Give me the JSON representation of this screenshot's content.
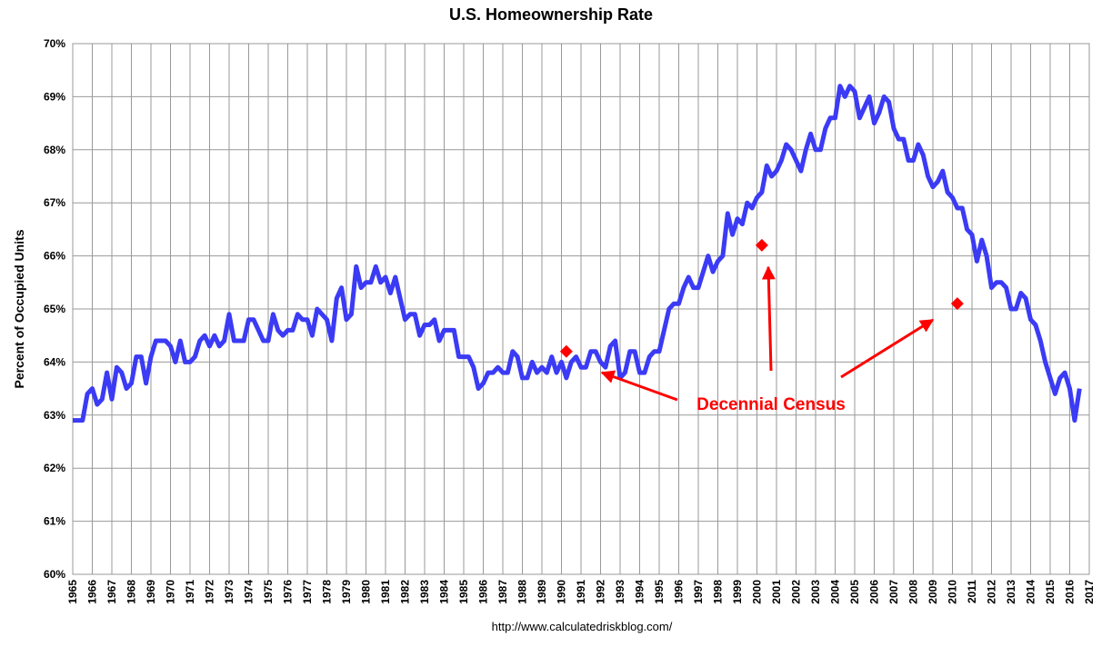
{
  "chart_data": {
    "type": "line",
    "title": "U.S. Homeownership Rate",
    "y_label": "Percent of Occupied Units",
    "source": "http://www.calculatedriskblog.com/",
    "annotation": "Decennial Census",
    "xlim": [
      1965,
      2017
    ],
    "xticks": [
      1965,
      1966,
      1967,
      1968,
      1969,
      1970,
      1971,
      1972,
      1973,
      1974,
      1975,
      1976,
      1977,
      1978,
      1979,
      1980,
      1981,
      1982,
      1983,
      1984,
      1985,
      1986,
      1987,
      1988,
      1989,
      1990,
      1991,
      1992,
      1993,
      1994,
      1995,
      1996,
      1997,
      1998,
      1999,
      2000,
      2001,
      2002,
      2003,
      2004,
      2005,
      2006,
      2007,
      2008,
      2009,
      2010,
      2011,
      2012,
      2013,
      2014,
      2015,
      2016,
      2017
    ],
    "ylim": [
      60,
      70
    ],
    "yticks": [
      {
        "value": 60,
        "label": "60%"
      },
      {
        "value": 61,
        "label": "61%"
      },
      {
        "value": 62,
        "label": "62%"
      },
      {
        "value": 63,
        "label": "63%"
      },
      {
        "value": 64,
        "label": "64%"
      },
      {
        "value": 65,
        "label": "65%"
      },
      {
        "value": 66,
        "label": "66%"
      },
      {
        "value": 67,
        "label": "67%"
      },
      {
        "value": 68,
        "label": "68%"
      },
      {
        "value": 69,
        "label": "69%"
      },
      {
        "value": 70,
        "label": "70%"
      }
    ],
    "grid": true,
    "x": [
      1965,
      1965.25,
      1965.5,
      1965.75,
      1966,
      1966.25,
      1966.5,
      1966.75,
      1967,
      1967.25,
      1967.5,
      1967.75,
      1968,
      1968.25,
      1968.5,
      1968.75,
      1969,
      1969.25,
      1969.5,
      1969.75,
      1970,
      1970.25,
      1970.5,
      1970.75,
      1971,
      1971.25,
      1971.5,
      1971.75,
      1972,
      1972.25,
      1972.5,
      1972.75,
      1973,
      1973.25,
      1973.5,
      1973.75,
      1974,
      1974.25,
      1974.5,
      1974.75,
      1975,
      1975.25,
      1975.5,
      1975.75,
      1976,
      1976.25,
      1976.5,
      1976.75,
      1977,
      1977.25,
      1977.5,
      1977.75,
      1978,
      1978.25,
      1978.5,
      1978.75,
      1979,
      1979.25,
      1979.5,
      1979.75,
      1980,
      1980.25,
      1980.5,
      1980.75,
      1981,
      1981.25,
      1981.5,
      1981.75,
      1982,
      1982.25,
      1982.5,
      1982.75,
      1983,
      1983.25,
      1983.5,
      1983.75,
      1984,
      1984.25,
      1984.5,
      1984.75,
      1985,
      1985.25,
      1985.5,
      1985.75,
      1986,
      1986.25,
      1986.5,
      1986.75,
      1987,
      1987.25,
      1987.5,
      1987.75,
      1988,
      1988.25,
      1988.5,
      1988.75,
      1989,
      1989.25,
      1989.5,
      1989.75,
      1990,
      1990.25,
      1990.5,
      1990.75,
      1991,
      1991.25,
      1991.5,
      1991.75,
      1992,
      1992.25,
      1992.5,
      1992.75,
      1993,
      1993.25,
      1993.5,
      1993.75,
      1994,
      1994.25,
      1994.5,
      1994.75,
      1995,
      1995.25,
      1995.5,
      1995.75,
      1996,
      1996.25,
      1996.5,
      1996.75,
      1997,
      1997.25,
      1997.5,
      1997.75,
      1998,
      1998.25,
      1998.5,
      1998.75,
      1999,
      1999.25,
      1999.5,
      1999.75,
      2000,
      2000.25,
      2000.5,
      2000.75,
      2001,
      2001.25,
      2001.5,
      2001.75,
      2002,
      2002.25,
      2002.5,
      2002.75,
      2003,
      2003.25,
      2003.5,
      2003.75,
      2004,
      2004.25,
      2004.5,
      2004.75,
      2005,
      2005.25,
      2005.5,
      2005.75,
      2006,
      2006.25,
      2006.5,
      2006.75,
      2007,
      2007.25,
      2007.5,
      2007.75,
      2008,
      2008.25,
      2008.5,
      2008.75,
      2009,
      2009.25,
      2009.5,
      2009.75,
      2010,
      2010.25,
      2010.5,
      2010.75,
      2011,
      2011.25,
      2011.5,
      2011.75,
      2012,
      2012.25,
      2012.5,
      2012.75,
      2013,
      2013.25,
      2013.5,
      2013.75,
      2014,
      2014.25,
      2014.5,
      2014.75,
      2015,
      2015.25,
      2015.5,
      2015.75,
      2016,
      2016.25,
      2016.5
    ],
    "series": [
      {
        "name": "Homeownership Rate",
        "color": "#3b3bf5",
        "values": [
          62.9,
          62.9,
          62.9,
          63.4,
          63.5,
          63.2,
          63.3,
          63.8,
          63.3,
          63.9,
          63.8,
          63.5,
          63.6,
          64.1,
          64.1,
          63.6,
          64.1,
          64.4,
          64.4,
          64.4,
          64.3,
          64.0,
          64.4,
          64.0,
          64.0,
          64.1,
          64.4,
          64.5,
          64.3,
          64.5,
          64.3,
          64.4,
          64.9,
          64.4,
          64.4,
          64.4,
          64.8,
          64.8,
          64.6,
          64.4,
          64.4,
          64.9,
          64.6,
          64.5,
          64.6,
          64.6,
          64.9,
          64.8,
          64.8,
          64.5,
          65.0,
          64.9,
          64.8,
          64.4,
          65.2,
          65.4,
          64.8,
          64.9,
          65.8,
          65.4,
          65.5,
          65.5,
          65.8,
          65.5,
          65.6,
          65.3,
          65.6,
          65.2,
          64.8,
          64.9,
          64.9,
          64.5,
          64.7,
          64.7,
          64.8,
          64.4,
          64.6,
          64.6,
          64.6,
          64.1,
          64.1,
          64.1,
          63.9,
          63.5,
          63.6,
          63.8,
          63.8,
          63.9,
          63.8,
          63.8,
          64.2,
          64.1,
          63.7,
          63.7,
          64.0,
          63.8,
          63.9,
          63.8,
          64.1,
          63.8,
          64.0,
          63.7,
          64.0,
          64.1,
          63.9,
          63.9,
          64.2,
          64.2,
          64.0,
          63.9,
          64.3,
          64.4,
          63.7,
          63.8,
          64.2,
          64.2,
          63.8,
          63.8,
          64.1,
          64.2,
          64.2,
          64.6,
          65.0,
          65.1,
          65.1,
          65.4,
          65.6,
          65.4,
          65.4,
          65.7,
          66.0,
          65.7,
          65.9,
          66.0,
          66.8,
          66.4,
          66.7,
          66.6,
          67.0,
          66.9,
          67.1,
          67.2,
          67.7,
          67.5,
          67.6,
          67.8,
          68.1,
          68.0,
          67.8,
          67.6,
          68.0,
          68.3,
          68.0,
          68.0,
          68.4,
          68.6,
          68.6,
          69.2,
          69.0,
          69.2,
          69.1,
          68.6,
          68.8,
          69.0,
          68.5,
          68.7,
          69.0,
          68.9,
          68.4,
          68.2,
          68.2,
          67.8,
          67.8,
          68.1,
          67.9,
          67.5,
          67.3,
          67.4,
          67.6,
          67.2,
          67.1,
          66.9,
          66.9,
          66.5,
          66.4,
          65.9,
          66.3,
          66.0,
          65.4,
          65.5,
          65.5,
          65.4,
          65.0,
          65.0,
          65.3,
          65.2,
          64.8,
          64.7,
          64.4,
          64.0,
          63.7,
          63.4,
          63.7,
          63.8,
          63.5,
          62.9,
          63.5
        ]
      }
    ],
    "census": {
      "color": "#ff0000",
      "x": [
        1990.25,
        2000.25,
        2010.25
      ],
      "values": [
        64.2,
        66.2,
        65.1
      ]
    }
  }
}
